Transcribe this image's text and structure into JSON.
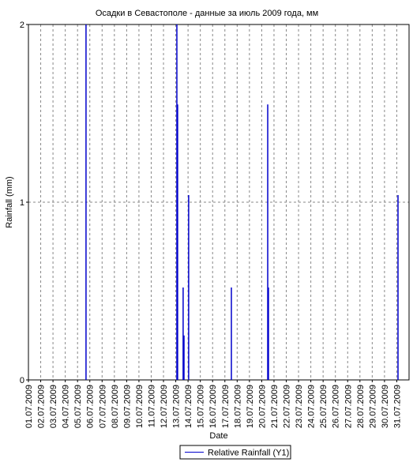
{
  "chart_data": {
    "type": "spike",
    "title": "Осадки в Севастополе - данные за июль 2009 года, мм",
    "x_label": "Date",
    "y_label": "Rainfall (mm)",
    "xlim": [
      1,
      32
    ],
    "xticks": [
      {
        "value": 1,
        "label": "01.07.2009"
      },
      {
        "value": 2,
        "label": "02.07.2009"
      },
      {
        "value": 3,
        "label": "03.07.2009"
      },
      {
        "value": 4,
        "label": "04.07.2009"
      },
      {
        "value": 5,
        "label": "05.07.2009"
      },
      {
        "value": 6,
        "label": "06.07.2009"
      },
      {
        "value": 7,
        "label": "07.07.2009"
      },
      {
        "value": 8,
        "label": "08.07.2009"
      },
      {
        "value": 9,
        "label": "09.07.2009"
      },
      {
        "value": 10,
        "label": "10.07.2009"
      },
      {
        "value": 11,
        "label": "11.07.2009"
      },
      {
        "value": 12,
        "label": "12.07.2009"
      },
      {
        "value": 13,
        "label": "13.07.2009"
      },
      {
        "value": 14,
        "label": "14.07.2009"
      },
      {
        "value": 15,
        "label": "15.07.2009"
      },
      {
        "value": 16,
        "label": "16.07.2009"
      },
      {
        "value": 17,
        "label": "17.07.2009"
      },
      {
        "value": 18,
        "label": "18.07.2009"
      },
      {
        "value": 19,
        "label": "19.07.2009"
      },
      {
        "value": 20,
        "label": "20.07.2009"
      },
      {
        "value": 21,
        "label": "21.07.2009"
      },
      {
        "value": 22,
        "label": "22.07.2009"
      },
      {
        "value": 23,
        "label": "23.07.2009"
      },
      {
        "value": 24,
        "label": "24.07.2009"
      },
      {
        "value": 25,
        "label": "25.07.2009"
      },
      {
        "value": 26,
        "label": "26.07.2009"
      },
      {
        "value": 27,
        "label": "27.07.2009"
      },
      {
        "value": 28,
        "label": "28.07.2009"
      },
      {
        "value": 29,
        "label": "29.07.2009"
      },
      {
        "value": 30,
        "label": "30.07.2009"
      },
      {
        "value": 31,
        "label": "31.07.2009"
      }
    ],
    "ylim": [
      0,
      2
    ],
    "yticks": [
      0,
      1,
      2
    ],
    "grid": true,
    "series": [
      {
        "name": "Relative Rainfall (Y1)",
        "color": "#0000cc",
        "x": [
          5.69,
          13.09,
          13.15,
          13.6,
          13.67,
          14.05,
          17.53,
          20.49,
          20.55,
          31.1
        ],
        "values": [
          2,
          2,
          1.55,
          0.52,
          0.25,
          1.04,
          0.52,
          1.55,
          0.52,
          1.04
        ]
      }
    ]
  }
}
